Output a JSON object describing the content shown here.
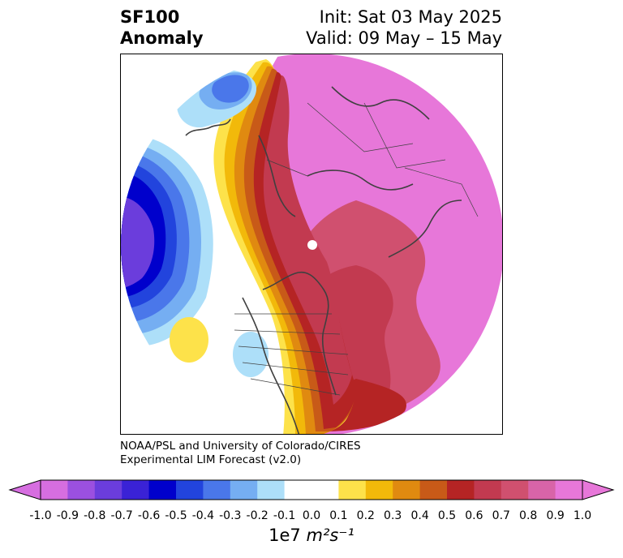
{
  "title": {
    "variable": "SF100",
    "type": "Anomaly",
    "init": "Init: Sat 03 May 2025",
    "valid": "Valid: 09 May – 15 May"
  },
  "credit": {
    "line1": "NOAA/PSL and University of Colorado/CIRES",
    "line2": "Experimental LIM Forecast (v2.0)"
  },
  "colorbar": {
    "ticks": [
      "-1.0",
      "-0.9",
      "-0.8",
      "-0.7",
      "-0.6",
      "-0.5",
      "-0.4",
      "-0.3",
      "-0.2",
      "-0.1",
      "0.0",
      "0.1",
      "0.2",
      "0.3",
      "0.4",
      "0.5",
      "0.6",
      "0.7",
      "0.8",
      "0.9",
      "1.0"
    ],
    "colors": [
      "#d66ee0",
      "#9b50e0",
      "#6b3ddc",
      "#3a22d6",
      "#0000cc",
      "#2244dd",
      "#4a77ea",
      "#75aef2",
      "#addff9",
      "#ffffff",
      "#ffffff",
      "#fde24a",
      "#f2b90a",
      "#e08a10",
      "#c85a18",
      "#b52424",
      "#c23a50",
      "#d0506f",
      "#d864a8",
      "#e777d9"
    ],
    "unit_prefix": "1e7",
    "unit": "m²s⁻¹"
  }
}
